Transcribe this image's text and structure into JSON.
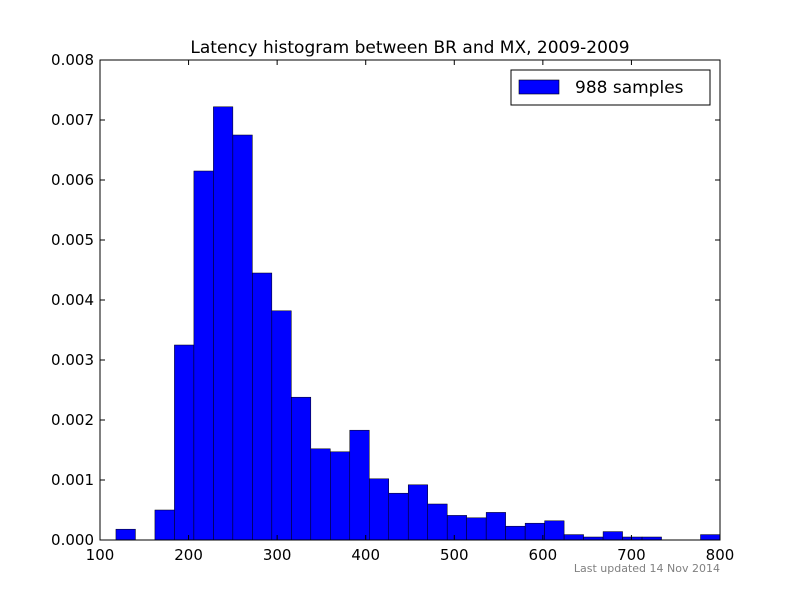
{
  "chart_data": {
    "type": "bar",
    "title": "Latency histogram between BR and MX, 2009-2009",
    "xlabel": "",
    "ylabel": "",
    "xlim": [
      100,
      800
    ],
    "ylim": [
      0,
      0.008
    ],
    "x_ticks": [
      "100",
      "200",
      "300",
      "400",
      "500",
      "600",
      "700",
      "800"
    ],
    "y_ticks": [
      "0.000",
      "0.001",
      "0.002",
      "0.003",
      "0.004",
      "0.005",
      "0.006",
      "0.007",
      "0.008"
    ],
    "bin_width": 22,
    "bins": [
      {
        "x": 118,
        "value": 0.00018
      },
      {
        "x": 162,
        "value": 0.0005
      },
      {
        "x": 184,
        "value": 0.00325
      },
      {
        "x": 206,
        "value": 0.00615
      },
      {
        "x": 228,
        "value": 0.00722
      },
      {
        "x": 250,
        "value": 0.00675
      },
      {
        "x": 272,
        "value": 0.00445
      },
      {
        "x": 294,
        "value": 0.00382
      },
      {
        "x": 316,
        "value": 0.00238
      },
      {
        "x": 338,
        "value": 0.00152
      },
      {
        "x": 360,
        "value": 0.00147
      },
      {
        "x": 382,
        "value": 0.00183
      },
      {
        "x": 404,
        "value": 0.00102
      },
      {
        "x": 426,
        "value": 0.00078
      },
      {
        "x": 448,
        "value": 0.00092
      },
      {
        "x": 470,
        "value": 0.0006
      },
      {
        "x": 492,
        "value": 0.00041
      },
      {
        "x": 514,
        "value": 0.00037
      },
      {
        "x": 536,
        "value": 0.00046
      },
      {
        "x": 558,
        "value": 0.00023
      },
      {
        "x": 580,
        "value": 0.00028
      },
      {
        "x": 602,
        "value": 0.00032
      },
      {
        "x": 624,
        "value": 9e-05
      },
      {
        "x": 646,
        "value": 5e-05
      },
      {
        "x": 668,
        "value": 0.00014
      },
      {
        "x": 690,
        "value": 5e-05
      },
      {
        "x": 712,
        "value": 5e-05
      },
      {
        "x": 778,
        "value": 9e-05
      }
    ],
    "legend": {
      "label": "988 samples",
      "placement": "top-right"
    },
    "bar_color": "#0000ff",
    "edge_color": "#000000",
    "grid": false,
    "footnote": "Last updated 14 Nov 2014"
  }
}
